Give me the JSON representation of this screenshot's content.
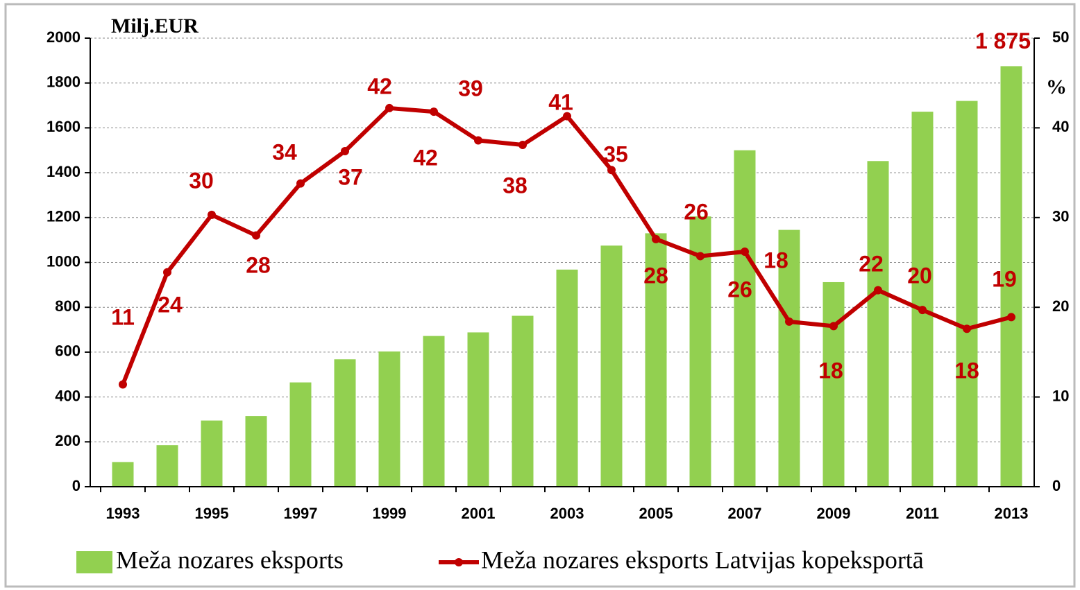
{
  "chart_data": {
    "type": "bar",
    "y_label": "Milj.EUR",
    "y2_label": "%",
    "categories": [
      "1993",
      null,
      "1995",
      null,
      "1997",
      null,
      "1999",
      null,
      "2001",
      null,
      "2003",
      null,
      "2005",
      null,
      "2007",
      null,
      "2009",
      null,
      "2011",
      null,
      "2013"
    ],
    "series": [
      {
        "name": "Meža nozares eksports",
        "type": "bar",
        "color": "#92d050",
        "values": [
          110,
          185,
          295,
          315,
          465,
          568,
          603,
          672,
          688,
          762,
          968,
          1075,
          1130,
          1205,
          1500,
          1145,
          912,
          1452,
          1672,
          1720,
          1875
        ],
        "value_labels": [
          null,
          null,
          null,
          null,
          null,
          null,
          null,
          null,
          null,
          null,
          null,
          null,
          null,
          null,
          null,
          null,
          null,
          null,
          null,
          null,
          "1 875"
        ]
      },
      {
        "name": "Meža nozares eksports Latvijas kopeksportā",
        "type": "line",
        "axis": "y2",
        "color": "#c00000",
        "values": [
          11.4,
          23.9,
          30.3,
          28.0,
          33.8,
          37.4,
          42.2,
          41.8,
          38.6,
          38.1,
          41.3,
          35.3,
          27.6,
          25.7,
          26.2,
          18.4,
          17.9,
          21.9,
          19.7,
          17.6,
          18.9
        ],
        "value_labels": [
          "11",
          "24",
          "30",
          "28",
          "34",
          "37",
          "42",
          "42",
          "39",
          "38",
          "41",
          "35",
          "28",
          "26",
          "26",
          "18",
          "18",
          "22",
          "20",
          "18",
          "19"
        ]
      }
    ],
    "ylim": [
      0,
      2000
    ],
    "yticks": [
      0,
      200,
      400,
      600,
      800,
      1000,
      1200,
      1400,
      1600,
      1800,
      2000
    ],
    "y2lim": [
      0,
      50
    ],
    "y2ticks": [
      0,
      10,
      20,
      30,
      40,
      50
    ],
    "grid": true,
    "legend": "bottom"
  }
}
